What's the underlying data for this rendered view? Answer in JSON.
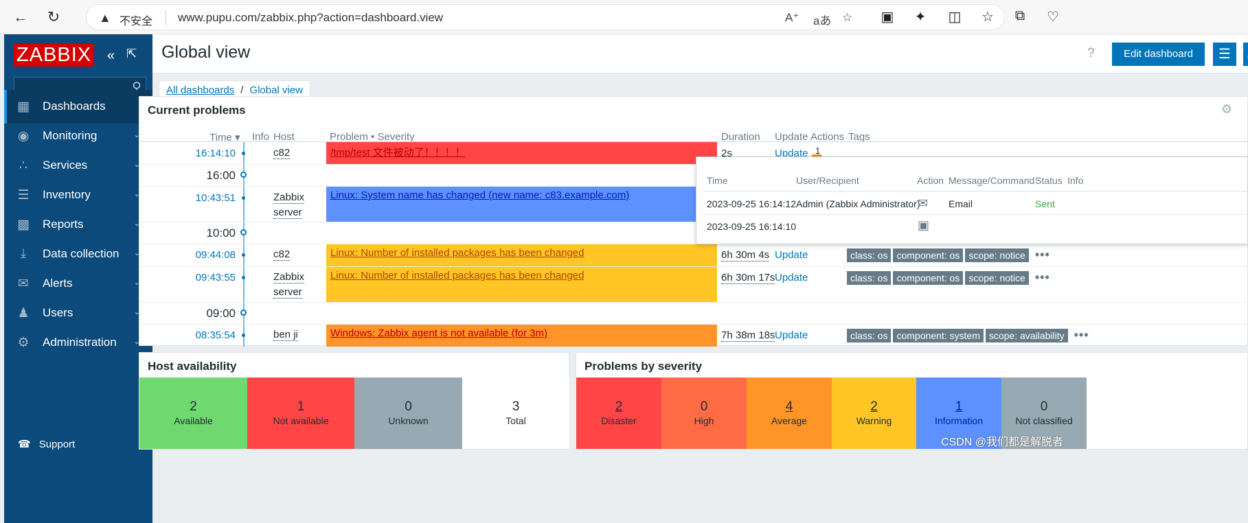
{
  "browser": {
    "back_icon": "back-arrow-icon",
    "refresh_icon": "refresh-icon",
    "security_warning": "不安全",
    "url": "www.pupu.com/zabbix.php?action=dashboard.view"
  },
  "sidebar": {
    "logo": "ZABBIX",
    "search_placeholder": "",
    "items": [
      {
        "label": "Dashboards",
        "icon": "dashboard-icon",
        "active": true
      },
      {
        "label": "Monitoring",
        "icon": "eye-icon"
      },
      {
        "label": "Services",
        "icon": "services-icon"
      },
      {
        "label": "Inventory",
        "icon": "list-icon"
      },
      {
        "label": "Reports",
        "icon": "reports-icon"
      },
      {
        "label": "Data collection",
        "icon": "download-icon"
      },
      {
        "label": "Alerts",
        "icon": "envelope-icon"
      },
      {
        "label": "Users",
        "icon": "users-icon"
      },
      {
        "label": "Administration",
        "icon": "gear-icon"
      }
    ],
    "support": "Support"
  },
  "header": {
    "title": "Global view",
    "help": "?",
    "edit_button": "Edit dashboard"
  },
  "breadcrumb": {
    "all": "All dashboards",
    "separator": "/",
    "current": "Global view"
  },
  "problems_widget": {
    "title": "Current problems",
    "columns": {
      "time": "Time ▾",
      "info": "Info",
      "host": "Host",
      "problem": "Problem • Severity",
      "duration": "Duration",
      "update": "Update",
      "actions": "Actions",
      "tags": "Tags"
    },
    "rows": [
      {
        "time": "16:14:10",
        "host": "c82",
        "problem": "/tmp/test 文件被动了！！！！",
        "severity": "disaster",
        "duration": "2s",
        "update": "Update",
        "actions": "1",
        "tags": []
      },
      {
        "marker": "16:00"
      },
      {
        "time": "10:43:51",
        "host_lines": [
          "Zabbix",
          "server"
        ],
        "problem": "Linux: System name has changed (new name: c83.example.com)",
        "severity": "info",
        "tags": []
      },
      {
        "marker": "10:00"
      },
      {
        "time": "09:44:08",
        "host": "c82",
        "problem": "Linux: Number of installed packages has been changed",
        "severity": "warning",
        "duration": "6h 30m 4s",
        "update": "Update",
        "tags": [
          "class: os",
          "component: os",
          "scope: notice"
        ]
      },
      {
        "time": "09:43:55",
        "host_lines": [
          "Zabbix",
          "server"
        ],
        "problem": "Linux: Number of installed packages has been changed",
        "severity": "warning",
        "duration": "6h 30m 17s",
        "update": "Update",
        "tags": [
          "class: os",
          "component: os",
          "scope: notice"
        ]
      },
      {
        "marker": "09:00"
      },
      {
        "time": "08:35:54",
        "host": "ben ji",
        "problem": "Windows: Zabbix agent is not available (for 3m)",
        "severity": "average",
        "duration": "7h 38m 18s",
        "update": "Update",
        "tags": [
          "class: os",
          "component: system",
          "scope: availability"
        ]
      }
    ]
  },
  "actions_popup": {
    "columns": {
      "time": "Time",
      "user": "User/Recipient",
      "action": "Action",
      "message": "Message/Command",
      "status": "Status",
      "info": "Info"
    },
    "rows": [
      {
        "time": "2023-09-25 16:14:12",
        "user": "Admin (Zabbix Administrator)",
        "action_icon": "envelope-icon",
        "message": "Email",
        "status": "Sent"
      },
      {
        "time": "2023-09-25 16:14:10",
        "user": "",
        "action_icon": "calendar-alert-icon",
        "message": "",
        "status": ""
      }
    ]
  },
  "host_availability": {
    "title": "Host availability",
    "blocks": [
      {
        "value": "2",
        "label": "Available",
        "color": "#6fd96f"
      },
      {
        "value": "1",
        "label": "Not available",
        "color": "#ff4545"
      },
      {
        "value": "0",
        "label": "Unknown",
        "color": "#97aab3"
      },
      {
        "value": "3",
        "label": "Total",
        "color": "#ffffff"
      }
    ]
  },
  "problems_by_severity": {
    "title": "Problems by severity",
    "blocks": [
      {
        "value": "2",
        "label": "Disaster",
        "color": "#ff4545"
      },
      {
        "value": "0",
        "label": "High",
        "color": "#ff6b45"
      },
      {
        "value": "4",
        "label": "Average",
        "color": "#ff9529"
      },
      {
        "value": "2",
        "label": "Warning",
        "color": "#ffc625"
      },
      {
        "value": "1",
        "label": "Information",
        "color": "#5c91ff"
      },
      {
        "value": "0",
        "label": "Not classified",
        "color": "#97aab3"
      }
    ]
  },
  "watermark": "CSDN @我们都是解脱者"
}
